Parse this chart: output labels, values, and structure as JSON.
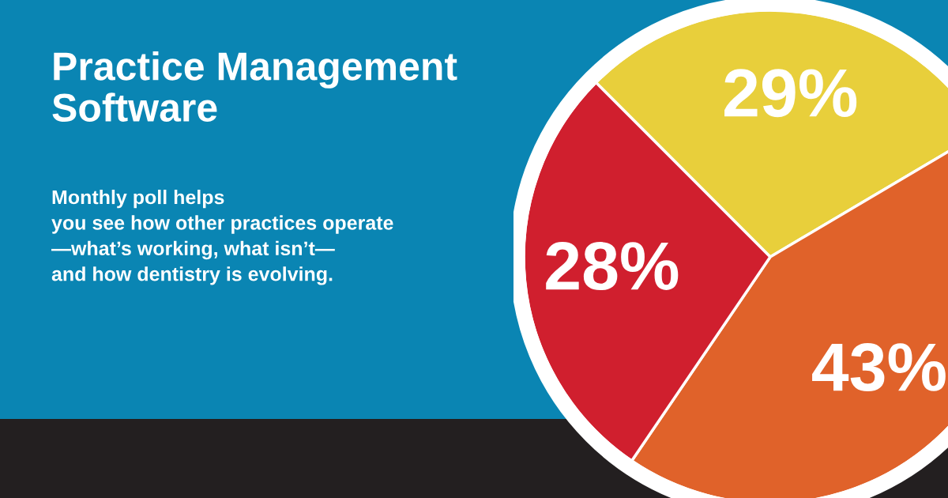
{
  "chart_data": {
    "type": "pie",
    "title": "Practice Management\nSoftware",
    "subtitle": "Monthly poll helps\nyou see how other practices operate\n—what’s working, what isn’t—\nand how dentistry is evolving.",
    "categories": [
      null,
      null,
      null
    ],
    "values": [
      29,
      43,
      28
    ],
    "colors": [
      "#e8cf3b",
      "#e0622a",
      "#d01f2e"
    ],
    "value_labels": [
      "29%",
      "43%",
      "28%"
    ],
    "legend": false
  }
}
